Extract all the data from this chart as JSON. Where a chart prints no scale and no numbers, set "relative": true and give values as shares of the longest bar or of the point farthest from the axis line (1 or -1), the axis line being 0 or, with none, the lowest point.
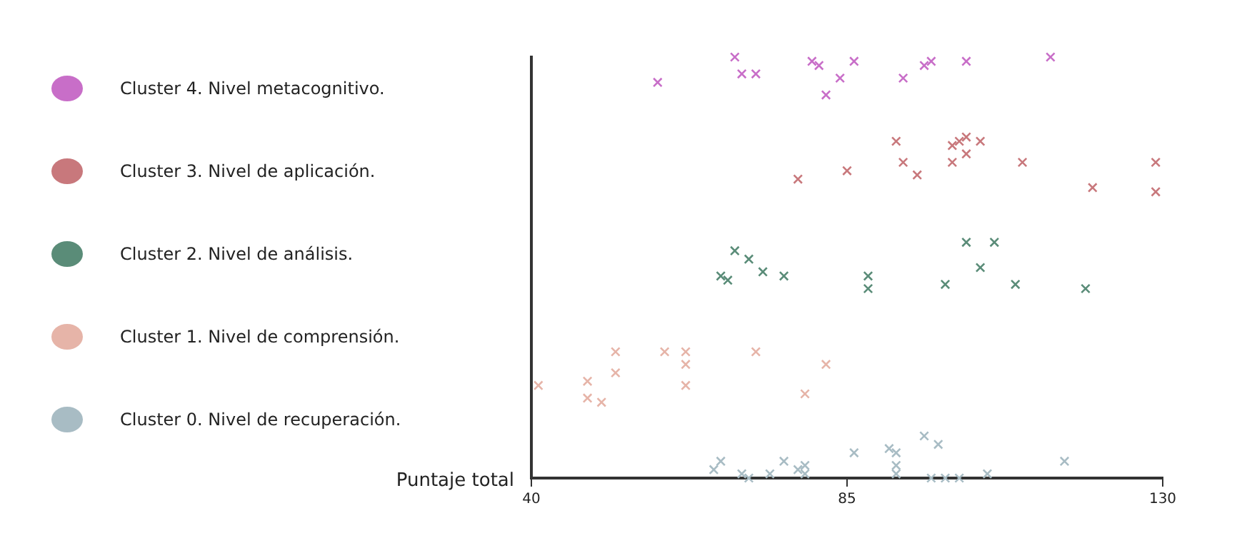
{
  "chart_data": {
    "type": "scatter",
    "xlabel": "Puntaje total",
    "relative": true,
    "xlim": [
      40,
      130
    ],
    "xticks": [
      40,
      85,
      130
    ],
    "grid": false,
    "legend": "left",
    "marker": "cross",
    "series": [
      {
        "name": "Cluster 4. Nivel metacognitivo.",
        "color": "#c86ec8",
        "x": [
          58,
          69,
          70,
          72,
          80,
          81,
          82,
          84,
          86,
          93,
          96,
          97,
          102,
          114
        ],
        "values": [
          0.94,
          1.0,
          0.96,
          0.96,
          0.99,
          0.98,
          0.91,
          0.95,
          0.99,
          0.95,
          0.98,
          0.99,
          0.99,
          1.0
        ]
      },
      {
        "name": "Cluster 3. Nivel de aplicación.",
        "color": "#c8787c",
        "x": [
          78,
          85,
          92,
          93,
          95,
          100,
          100,
          101,
          102,
          102,
          104,
          110,
          120,
          129,
          129
        ],
        "values": [
          0.71,
          0.73,
          0.8,
          0.75,
          0.72,
          0.75,
          0.79,
          0.8,
          0.81,
          0.77,
          0.8,
          0.75,
          0.69,
          0.75,
          0.68
        ]
      },
      {
        "name": "Cluster 2. Nivel de análisis.",
        "color": "#5a8c78",
        "x": [
          67,
          68,
          69,
          71,
          73,
          76,
          88,
          88,
          99,
          102,
          104,
          106,
          109,
          119
        ],
        "values": [
          0.48,
          0.47,
          0.54,
          0.52,
          0.49,
          0.48,
          0.45,
          0.48,
          0.46,
          0.56,
          0.5,
          0.56,
          0.46,
          0.45
        ]
      },
      {
        "name": "Cluster 1. Nivel de comprensión.",
        "color": "#e6b4a8",
        "x": [
          41,
          48,
          48,
          50,
          52,
          52,
          59,
          62,
          62,
          62,
          72,
          79,
          82
        ],
        "values": [
          0.22,
          0.19,
          0.23,
          0.18,
          0.3,
          0.25,
          0.3,
          0.27,
          0.3,
          0.22,
          0.3,
          0.2,
          0.27
        ]
      },
      {
        "name": "Cluster 0. Nivel de recuperación.",
        "color": "#a8bcc4",
        "x": [
          66,
          67,
          70,
          71,
          74,
          76,
          78,
          79,
          79,
          86,
          91,
          92,
          92,
          92,
          96,
          98,
          97,
          99,
          101,
          105,
          116
        ],
        "values": [
          0.02,
          0.04,
          0.01,
          0,
          0.01,
          0.04,
          0.02,
          0.03,
          0.01,
          0.06,
          0.07,
          0.01,
          0.03,
          0.06,
          0.1,
          0.08,
          0,
          0,
          0,
          0.01,
          0.04
        ]
      }
    ]
  }
}
